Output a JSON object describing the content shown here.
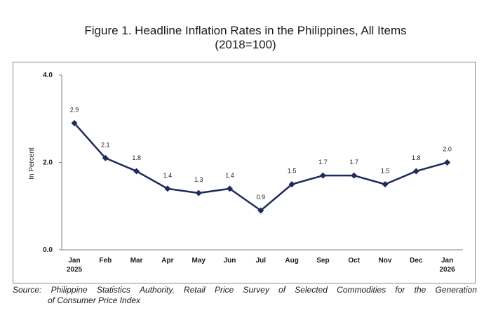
{
  "title": {
    "line1": "Figure 1. Headline Inflation Rates in the Philippines, All Items",
    "line2": "(2018=100)"
  },
  "chart_data": {
    "type": "line",
    "title": "Figure 1. Headline Inflation Rates in the Philippines, All Items (2018=100)",
    "xlabel": "",
    "ylabel": "In Percent",
    "ylim": [
      0,
      4
    ],
    "yticks": [
      "0.0",
      "2.0",
      "4.0"
    ],
    "categories": [
      "Jan",
      "Feb",
      "Mar",
      "Apr",
      "May",
      "Jun",
      "Jul",
      "Aug",
      "Sep",
      "Oct",
      "Nov",
      "Dec",
      "Jan"
    ],
    "year_labels": [
      "2025",
      "",
      "",
      "",
      "",
      "",
      "",
      "",
      "",
      "",
      "",
      "",
      "2026"
    ],
    "series": [
      {
        "name": "Headline Inflation",
        "values": [
          2.9,
          2.1,
          1.8,
          1.4,
          1.3,
          1.4,
          0.9,
          1.5,
          1.7,
          1.7,
          1.5,
          1.8,
          2.0
        ],
        "labels": [
          "2.9",
          "2.1",
          "1.8",
          "1.4",
          "1.3",
          "1.4",
          "0.9",
          "1.5",
          "1.7",
          "1.7",
          "1.5",
          "1.8",
          "2.0"
        ]
      }
    ],
    "legend": "none",
    "line_color": "#1f2a5c"
  },
  "source": {
    "words": [
      "Source:",
      "Philippine",
      "Statistics",
      "Authority,",
      "Retail",
      "Price",
      "Survey",
      "of",
      "Selected",
      "Commodities",
      "for",
      "the",
      "Generation"
    ],
    "line2": "of Consumer Price Index"
  }
}
